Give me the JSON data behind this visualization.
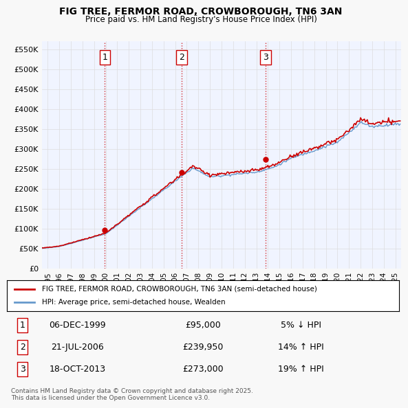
{
  "title_line1": "FIG TREE, FERMOR ROAD, CROWBOROUGH, TN6 3AN",
  "title_line2": "Price paid vs. HM Land Registry's House Price Index (HPI)",
  "ylabel_ticks": [
    "£0",
    "£50K",
    "£100K",
    "£150K",
    "£200K",
    "£250K",
    "£300K",
    "£350K",
    "£400K",
    "£450K",
    "£500K",
    "£550K"
  ],
  "ytick_values": [
    0,
    50000,
    100000,
    150000,
    200000,
    250000,
    300000,
    350000,
    400000,
    450000,
    500000,
    550000
  ],
  "ylim": [
    0,
    570000
  ],
  "xlim_start": 1994.5,
  "xlim_end": 2025.5,
  "xtick_years": [
    1995,
    1996,
    1997,
    1998,
    1999,
    2000,
    2001,
    2002,
    2003,
    2004,
    2005,
    2006,
    2007,
    2008,
    2009,
    2010,
    2011,
    2012,
    2013,
    2014,
    2015,
    2016,
    2017,
    2018,
    2019,
    2020,
    2021,
    2022,
    2023,
    2024,
    2025
  ],
  "sale1_x": 1999.92,
  "sale1_y": 95000,
  "sale1_label": "1",
  "sale2_x": 2006.55,
  "sale2_y": 239950,
  "sale2_label": "2",
  "sale3_x": 2013.8,
  "sale3_y": 273000,
  "sale3_label": "3",
  "property_color": "#cc0000",
  "hpi_color": "#6699cc",
  "background_color": "#f0f4ff",
  "plot_bg_color": "#ffffff",
  "grid_color": "#dddddd",
  "legend_entries": [
    "FIG TREE, FERMOR ROAD, CROWBOROUGH, TN6 3AN (semi-detached house)",
    "HPI: Average price, semi-detached house, Wealden"
  ],
  "table_data": [
    [
      "1",
      "06-DEC-1999",
      "£95,000",
      "5% ↓ HPI"
    ],
    [
      "2",
      "21-JUL-2006",
      "£239,950",
      "14% ↑ HPI"
    ],
    [
      "3",
      "18-OCT-2013",
      "£273,000",
      "19% ↑ HPI"
    ]
  ],
  "footnote": "Contains HM Land Registry data © Crown copyright and database right 2025.\nThis data is licensed under the Open Government Licence v3.0.",
  "vline_color": "#cc0000",
  "vline_style": ":",
  "marker_color": "#cc0000"
}
